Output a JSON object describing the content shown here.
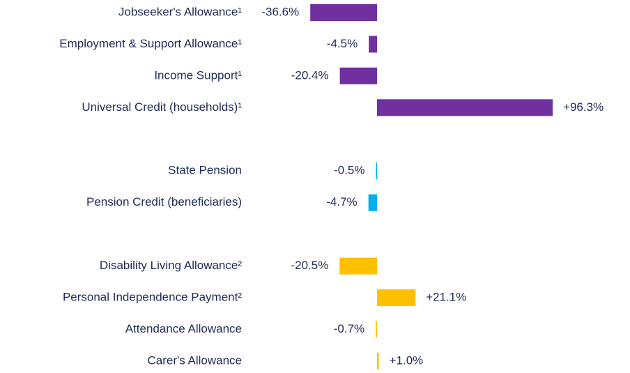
{
  "chart_data": {
    "type": "hbar",
    "categories": [
      "Jobseeker's Allowance¹",
      "Employment & Support Allowance¹",
      "Income Support¹",
      "Universal Credit (households)¹",
      null,
      "State Pension",
      "Pension Credit (beneficiaries)",
      null,
      "Disability Living Allowance²",
      "Personal Independence Payment²",
      "Attendance Allowance",
      "Carer's Allowance"
    ],
    "values": [
      -36.6,
      -4.5,
      -20.4,
      96.3,
      null,
      -0.5,
      -4.7,
      null,
      -20.5,
      21.1,
      -0.7,
      1.0
    ],
    "value_labels": [
      "-36.6%",
      "-4.5%",
      "-20.4%",
      "+96.3%",
      null,
      "-0.5%",
      "-4.7%",
      null,
      "-20.5%",
      "+21.1%",
      "-0.7%",
      "+1.0%"
    ],
    "colors": [
      "#7030a0",
      "#7030a0",
      "#7030a0",
      "#7030a0",
      null,
      "#00b0f0",
      "#00b0f0",
      null,
      "#ffc000",
      "#ffc000",
      "#ffc000",
      "#ffc000"
    ]
  }
}
